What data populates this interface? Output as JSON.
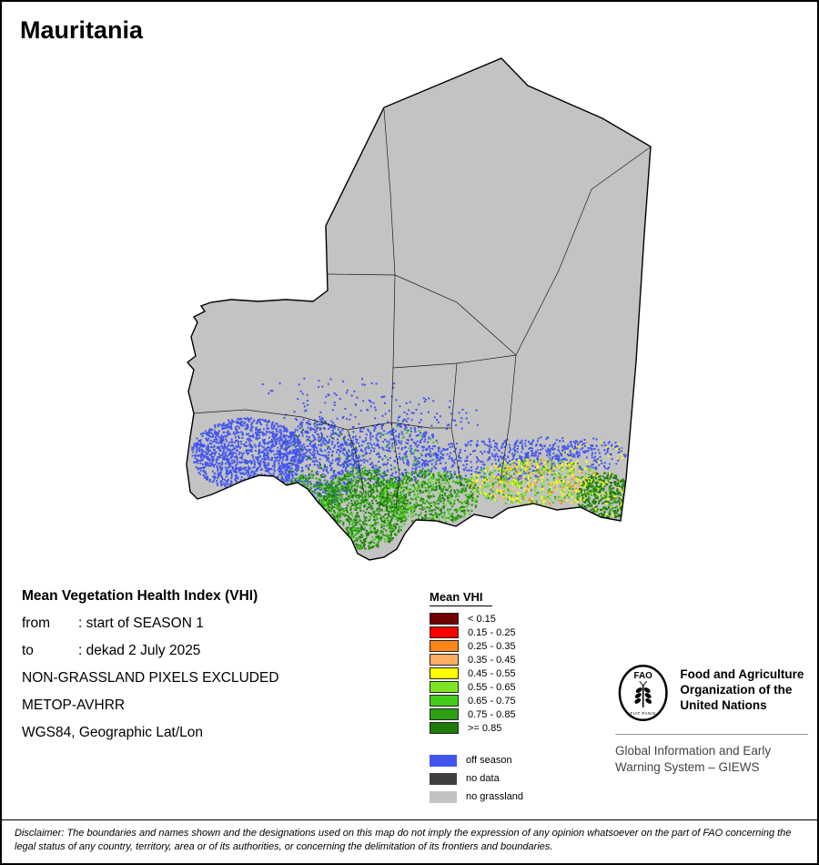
{
  "title": "Mauritania",
  "meta": {
    "heading": "Mean Vegetation Health Index (VHI)",
    "from_label": "from",
    "from_value": ": start of SEASON 1",
    "to_label": "to",
    "to_value": ": dekad 2 July 2025",
    "lines": [
      "NON-GRASSLAND PIXELS EXCLUDED",
      "METOP-AVHRR",
      "WGS84, Geographic Lat/Lon"
    ]
  },
  "legend": {
    "title": "Mean VHI",
    "classes": [
      {
        "label": "< 0.15",
        "color": "#730000"
      },
      {
        "label": "0.15 - 0.25",
        "color": "#FF0000"
      },
      {
        "label": "0.25 - 0.35",
        "color": "#FF8519"
      },
      {
        "label": "0.35 - 0.45",
        "color": "#FFAD63"
      },
      {
        "label": "0.45 - 0.55",
        "color": "#FFFF00"
      },
      {
        "label": "0.55 - 0.65",
        "color": "#7FE627"
      },
      {
        "label": "0.65 - 0.75",
        "color": "#44CC1C"
      },
      {
        "label": "0.75 - 0.85",
        "color": "#2BA012"
      },
      {
        "label": ">= 0.85",
        "color": "#1E7A0A"
      }
    ],
    "extra_classes": [
      {
        "label": "off season",
        "color": "#4255EE"
      },
      {
        "label": "no data",
        "color": "#3F3F3F"
      },
      {
        "label": "no grassland",
        "color": "#C3C3C3"
      }
    ]
  },
  "map": {
    "country": "Mauritania",
    "base_color": "#C3C3C3",
    "outline_color": "#000000"
  },
  "branding": {
    "logo_text": "FAO",
    "logo_motto": "FIAT PANIS",
    "org_name": "Food and Agriculture Organization of the United Nations",
    "tagline": "Global Information and Early Warning System – GIEWS"
  },
  "disclaimer": "Disclaimer: The boundaries and names shown and the designations used on this map do not imply the expression of any opinion whatsoever on the part of FAO concerning the legal status of any country, territory, area or of its authorities, or concerning the delimitation of its frontiers and boundaries."
}
